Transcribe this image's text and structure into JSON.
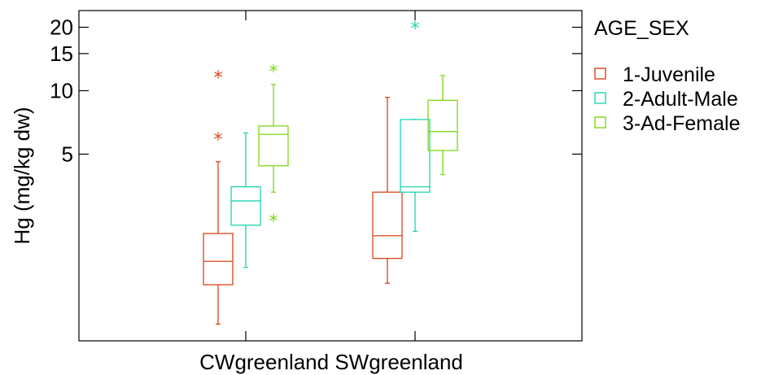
{
  "chart_data": {
    "type": "boxplot",
    "ylabel": "Hg (mg/kg dw)",
    "y_scale": "log",
    "ylim": [
      0.65,
      24
    ],
    "y_ticks": [
      5,
      10,
      15,
      20
    ],
    "y_tick_labels": [
      "5",
      "10",
      "15",
      "20"
    ],
    "categories": [
      "CWgreenland",
      "SWgreenland"
    ],
    "legend": {
      "title": "AGE_SEX",
      "placement": "right"
    },
    "series": [
      {
        "name": "1-Juvenile",
        "color": "#d9441a",
        "boxes": [
          {
            "whisker_low": 0.78,
            "q1": 1.2,
            "median": 1.55,
            "q3": 2.1,
            "whisker_high": 4.6,
            "outliers": [
              6.0,
              11.8
            ]
          },
          {
            "whisker_low": 1.22,
            "q1": 1.6,
            "median": 2.05,
            "q3": 3.3,
            "whisker_high": 9.3,
            "outliers": []
          }
        ]
      },
      {
        "name": "2-Adult-Male",
        "color": "#1ed6b0",
        "boxes": [
          {
            "whisker_low": 1.45,
            "q1": 2.3,
            "median": 3.0,
            "q3": 3.5,
            "whisker_high": 6.3,
            "outliers": []
          },
          {
            "whisker_low": 2.15,
            "q1": 3.3,
            "median": 3.5,
            "q3": 7.3,
            "whisker_high": 7.3,
            "outliers": [
              20.2
            ]
          }
        ]
      },
      {
        "name": "3-Ad-Female",
        "color": "#7fd61a",
        "boxes": [
          {
            "whisker_low": 3.3,
            "q1": 4.4,
            "median": 6.2,
            "q3": 6.8,
            "whisker_high": 10.7,
            "outliers": [
              2.45,
              12.6
            ]
          },
          {
            "whisker_low": 4.0,
            "q1": 5.2,
            "median": 6.4,
            "q3": 9.0,
            "whisker_high": 11.8,
            "outliers": []
          }
        ]
      }
    ]
  }
}
